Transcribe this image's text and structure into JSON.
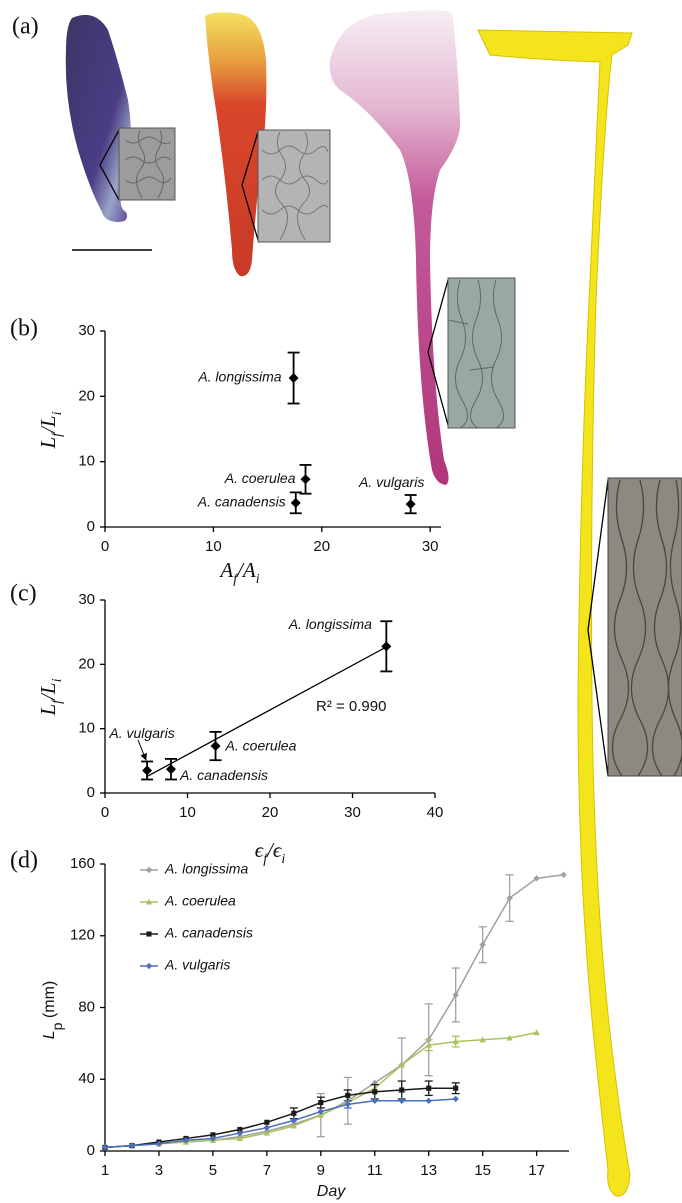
{
  "panel_a_label": "(a)",
  "chart_data": [
    {
      "type": "scatter",
      "panel_label": "(b)",
      "xlabel": [
        "A",
        "f",
        "/A",
        "i"
      ],
      "ylabel": [
        "L",
        "f",
        "/L",
        "i"
      ],
      "xlim": [
        0,
        31
      ],
      "xticks": [
        0,
        10,
        20,
        30
      ],
      "ylim": [
        0,
        30
      ],
      "yticks": [
        0,
        10,
        20,
        30
      ],
      "labels": [
        "A. longissima",
        "A. coerulea",
        "A. canadensis",
        "A. vulgaris"
      ],
      "x": [
        17.4,
        18.5,
        17.6,
        28.2
      ],
      "y": [
        22.8,
        7.3,
        3.7,
        3.5
      ],
      "yerr": [
        3.9,
        2.2,
        1.6,
        1.4
      ],
      "color": "#000000",
      "marker": "diamond"
    },
    {
      "type": "scatter",
      "panel_label": "(c)",
      "xlabel": [
        "ϵ",
        "f",
        "/ϵ",
        "i"
      ],
      "ylabel": [
        "L",
        "f",
        "/L",
        "i"
      ],
      "xlim": [
        0,
        40
      ],
      "xticks": [
        0,
        10,
        20,
        30,
        40
      ],
      "ylim": [
        0,
        30
      ],
      "yticks": [
        0,
        10,
        20,
        30
      ],
      "labels": [
        "A. longissima",
        "A. coerulea",
        "A. canadensis",
        "A. vulgaris"
      ],
      "x": [
        34.1,
        13.4,
        8.0,
        5.1
      ],
      "y": [
        22.8,
        7.3,
        3.7,
        3.5
      ],
      "yerr": [
        3.9,
        2.2,
        1.6,
        1.4
      ],
      "color": "#000000",
      "marker": "diamond",
      "trendline": {
        "x": [
          5,
          34.1
        ],
        "y": [
          2.5,
          22.7
        ]
      },
      "annotation": "R² = 0.990"
    },
    {
      "type": "line",
      "panel_label": "(d)",
      "xlabel": [
        "Day"
      ],
      "ylabel": [
        "L",
        "p",
        " (mm)"
      ],
      "x": [
        1,
        2,
        3,
        4,
        5,
        6,
        7,
        8,
        9,
        10,
        11,
        12,
        13,
        14,
        15,
        16,
        17,
        18
      ],
      "xlim": [
        1,
        18.2
      ],
      "xticks": [
        1,
        3,
        5,
        7,
        9,
        11,
        13,
        15,
        17
      ],
      "ylim": [
        0,
        160
      ],
      "yticks": [
        0,
        40,
        80,
        120,
        160
      ],
      "legend": "top-left",
      "series": [
        {
          "name": "A. longissima",
          "color": "#a0a0a0",
          "marker": "diamond",
          "values": [
            2,
            3,
            4.5,
            5,
            6,
            8,
            11,
            15,
            20,
            28,
            38,
            48,
            62,
            87,
            115,
            141,
            152,
            154
          ],
          "errors": [
            null,
            null,
            null,
            null,
            null,
            null,
            null,
            null,
            12,
            13,
            null,
            15,
            20,
            15,
            10,
            13,
            null,
            null
          ]
        },
        {
          "name": "A. coerulea",
          "color": "#a9c35e",
          "marker": "triangle",
          "values": [
            2,
            3,
            4,
            5,
            6,
            7,
            10,
            14,
            20,
            27,
            35,
            48,
            59,
            61,
            62,
            63,
            66,
            null
          ],
          "errors": [
            null,
            null,
            null,
            null,
            null,
            null,
            null,
            null,
            null,
            null,
            null,
            null,
            3,
            3,
            null,
            null,
            null,
            null
          ]
        },
        {
          "name": "A. canadensis",
          "color": "#1a1a1a",
          "marker": "square",
          "values": [
            2,
            3,
            5,
            7,
            9,
            12,
            16,
            21,
            27,
            31,
            33,
            34,
            35,
            35,
            null,
            null,
            null,
            null
          ],
          "errors": [
            null,
            null,
            null,
            null,
            null,
            null,
            null,
            3,
            3,
            3,
            4,
            5,
            4,
            3,
            null,
            null,
            null,
            null
          ]
        },
        {
          "name": "A. vulgaris",
          "color": "#4a6fbf",
          "marker": "diamond",
          "values": [
            2,
            3,
            4,
            6,
            7,
            10,
            13,
            17,
            22,
            26,
            28,
            28,
            28,
            29,
            null,
            null,
            null,
            null
          ],
          "errors": [
            null,
            null,
            null,
            null,
            null,
            null,
            null,
            null,
            null,
            2,
            null,
            null,
            null,
            null,
            null,
            null,
            null,
            null
          ]
        }
      ]
    }
  ]
}
